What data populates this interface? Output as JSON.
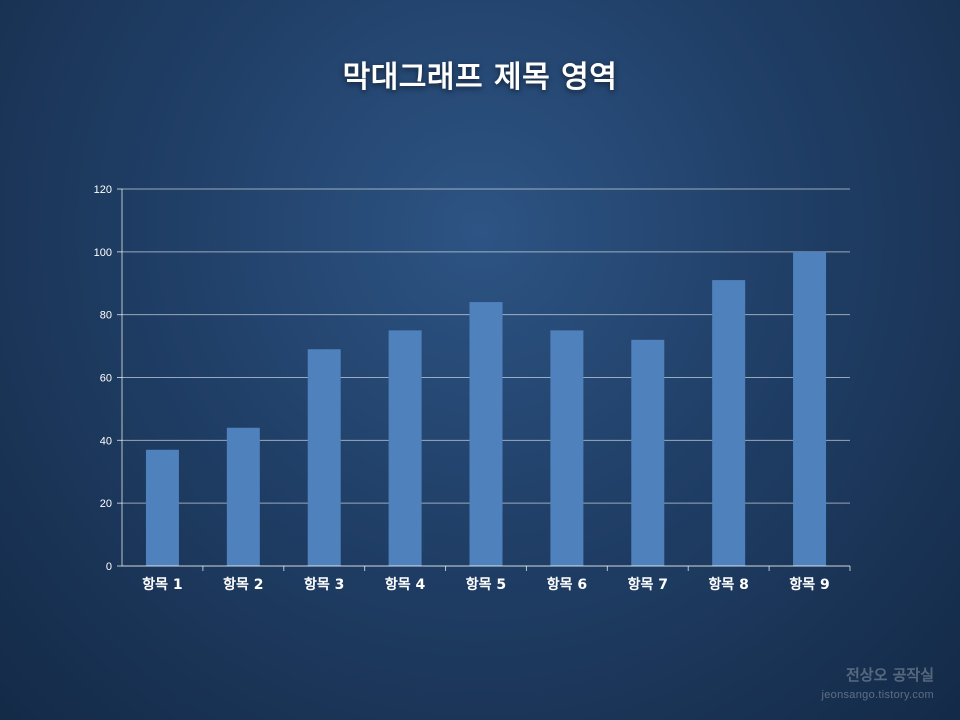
{
  "chart_data": {
    "type": "bar",
    "title": "막대그래프 제목 영역",
    "categories": [
      "항목 1",
      "항목 2",
      "항목 3",
      "항목 4",
      "항목 5",
      "항목 6",
      "항목 7",
      "항목 8",
      "항목 9"
    ],
    "values": [
      37,
      44,
      69,
      75,
      84,
      75,
      72,
      91,
      100
    ],
    "yticks": [
      0,
      20,
      40,
      60,
      80,
      100,
      120
    ],
    "ylim": [
      0,
      120
    ],
    "xlabel": "",
    "ylabel": "",
    "grid": true,
    "legend": "none",
    "bar_color": "#4f81bd"
  },
  "watermark": {
    "name": "전상오 공작실",
    "url": "jeonsango.tistory.com"
  }
}
